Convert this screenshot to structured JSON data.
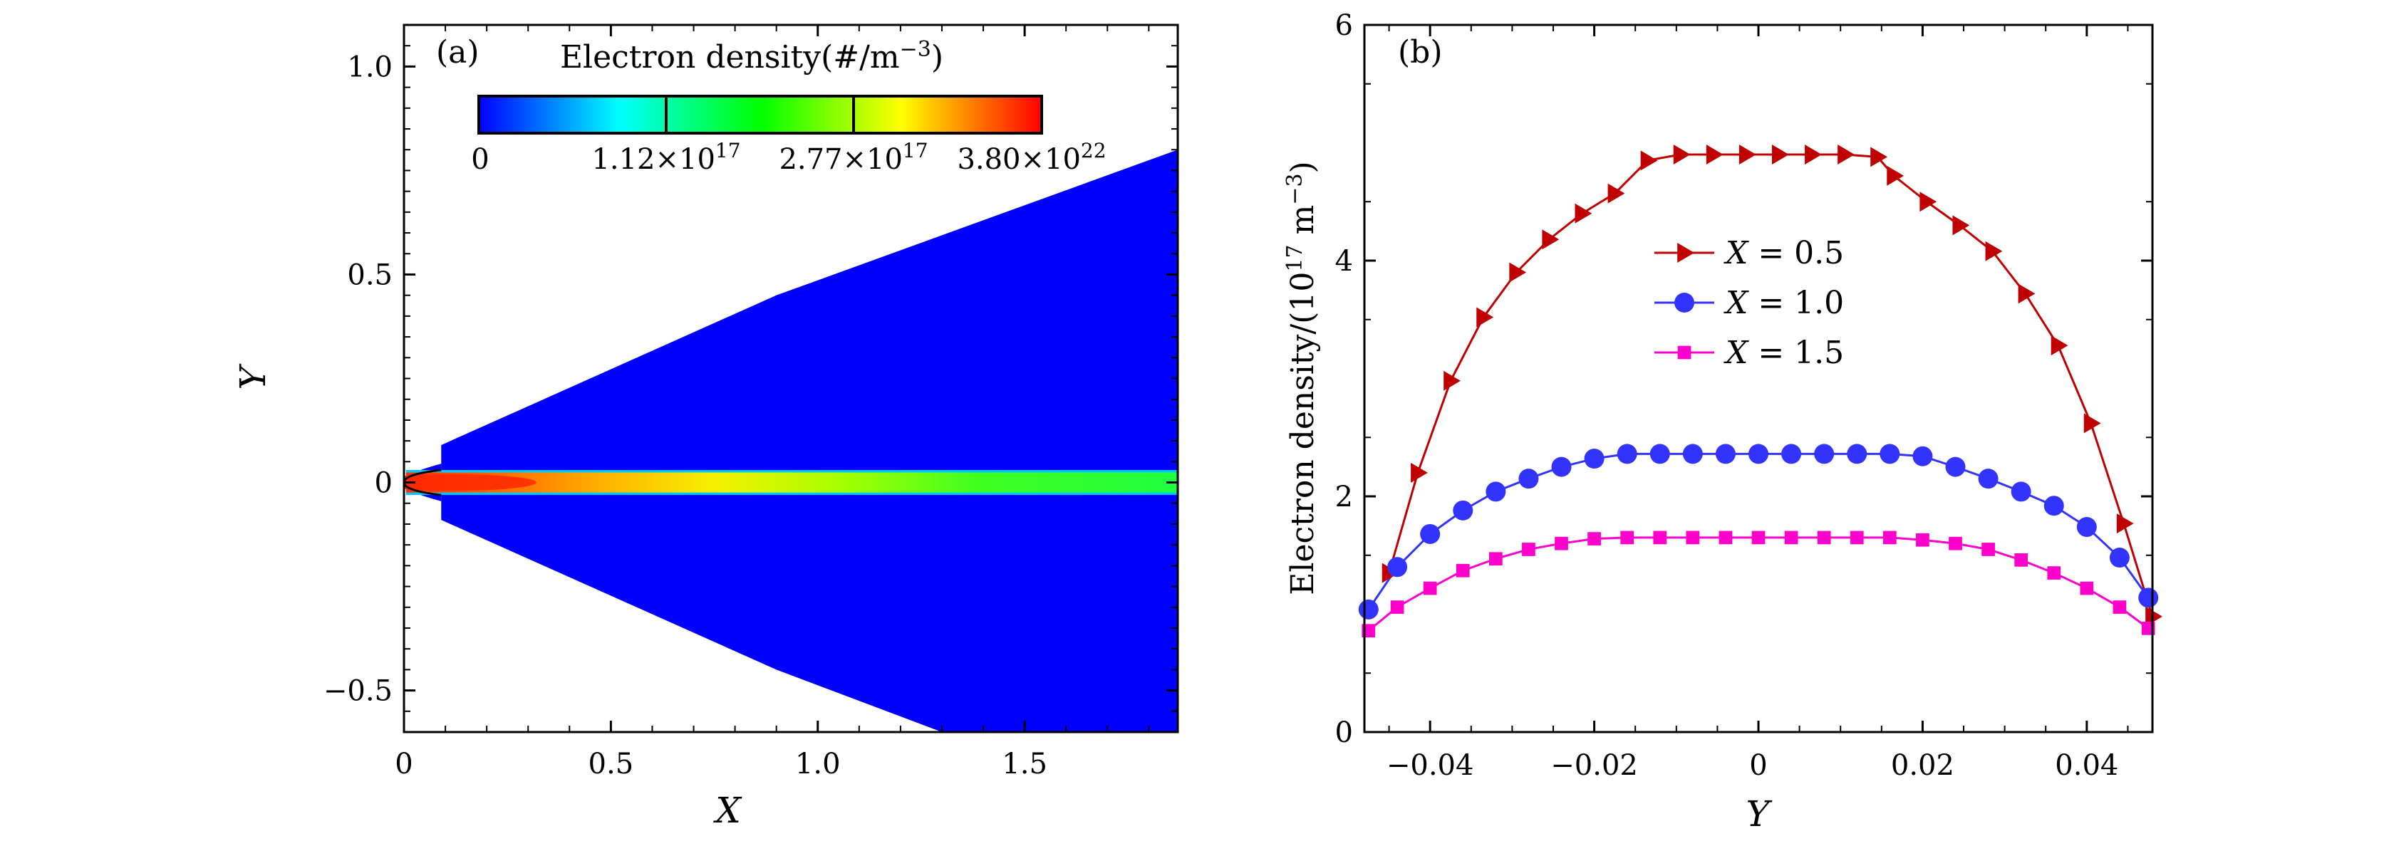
{
  "chart_data": [
    {
      "type": "heatmap",
      "panel_label": "(a)",
      "xlabel": "X",
      "ylabel": "Y",
      "xlim": [
        0,
        1.87
      ],
      "ylim": [
        -0.6,
        1.1
      ],
      "xticks": [
        0,
        0.5,
        1.0,
        1.5
      ],
      "xtick_labels": [
        "0",
        "0.5",
        "1.0",
        "1.5"
      ],
      "yticks": [
        -0.5,
        0,
        0.5,
        1.0
      ],
      "ytick_labels": [
        "−0.5",
        "0",
        "0.5",
        "1.0"
      ],
      "colorbar": {
        "title": "Electron density(#/m",
        "title_exp": "−3",
        "title_close": ")",
        "stops": [
          "#0000ff",
          "#00ffff",
          "#00ff00",
          "#ffff00",
          "#ff0000"
        ],
        "tick_labels": [
          {
            "text": "0"
          },
          {
            "mant": "1.12×10",
            "exp": "17"
          },
          {
            "mant": "2.77×10",
            "exp": "17"
          },
          {
            "mant": "3.80×10",
            "exp": "22"
          }
        ]
      },
      "domain_boundary": {
        "upper": [
          [
            0.09,
            0.09
          ],
          [
            0.9,
            0.45
          ],
          [
            1.87,
            0.8
          ]
        ],
        "lower": [
          [
            0.09,
            -0.09
          ],
          [
            0.9,
            -0.45
          ],
          [
            1.3,
            -0.6
          ]
        ]
      },
      "background_color": "#0000ff"
    },
    {
      "type": "line",
      "panel_label": "(b)",
      "xlabel": "Y",
      "ylabel": "Electron density/(10",
      "ylabel_exp": "17",
      "ylabel_tail": " m",
      "ylabel_exp2": "−3",
      "ylabel_close": ")",
      "xlim": [
        -0.048,
        0.048
      ],
      "ylim": [
        0,
        6
      ],
      "xticks": [
        -0.04,
        -0.02,
        0,
        0.02,
        0.04
      ],
      "xtick_labels": [
        "−0.04",
        "−0.02",
        "0",
        "0.02",
        "0.04"
      ],
      "yticks": [
        0,
        2,
        4,
        6
      ],
      "ytick_labels": [
        "0",
        "2",
        "4",
        "6"
      ],
      "legend_position": "center",
      "series": [
        {
          "name": "X = 0.5",
          "name_var": "X",
          "name_val": " = 0.5",
          "color": "#c00000",
          "marker": "triangle-right",
          "x": [
            -0.045,
            -0.0415,
            -0.0375,
            -0.0335,
            -0.0295,
            -0.0255,
            -0.0215,
            -0.0175,
            -0.0135,
            -0.0095,
            -0.0055,
            -0.0015,
            0.0025,
            0.0065,
            0.0105,
            0.0145,
            0.0165,
            0.0205,
            0.0245,
            0.0285,
            0.0325,
            0.0365,
            0.0405,
            0.0445,
            0.048
          ],
          "y": [
            1.35,
            2.2,
            2.98,
            3.52,
            3.9,
            4.18,
            4.4,
            4.57,
            4.85,
            4.9,
            4.9,
            4.9,
            4.9,
            4.9,
            4.9,
            4.88,
            4.72,
            4.5,
            4.3,
            4.08,
            3.72,
            3.28,
            2.62,
            1.77,
            0.98
          ]
        },
        {
          "name": "X = 1.0",
          "name_var": "X",
          "name_val": " = 1.0",
          "color": "#3333ff",
          "marker": "circle",
          "x": [
            -0.0475,
            -0.044,
            -0.04,
            -0.036,
            -0.032,
            -0.028,
            -0.024,
            -0.02,
            -0.016,
            -0.012,
            -0.008,
            -0.004,
            0,
            0.004,
            0.008,
            0.012,
            0.016,
            0.02,
            0.024,
            0.028,
            0.032,
            0.036,
            0.04,
            0.044,
            0.0475
          ],
          "y": [
            1.04,
            1.4,
            1.68,
            1.88,
            2.04,
            2.15,
            2.25,
            2.32,
            2.36,
            2.36,
            2.36,
            2.36,
            2.36,
            2.36,
            2.36,
            2.36,
            2.36,
            2.34,
            2.25,
            2.15,
            2.04,
            1.92,
            1.74,
            1.48,
            1.14
          ]
        },
        {
          "name": "X = 1.5",
          "name_var": "X",
          "name_val": " = 1.5",
          "color": "#ff00cc",
          "marker": "square",
          "x": [
            -0.0475,
            -0.044,
            -0.04,
            -0.036,
            -0.032,
            -0.028,
            -0.024,
            -0.02,
            -0.016,
            -0.012,
            -0.008,
            -0.004,
            0,
            0.004,
            0.008,
            0.012,
            0.016,
            0.02,
            0.024,
            0.028,
            0.032,
            0.036,
            0.04,
            0.044,
            0.0475
          ],
          "y": [
            0.86,
            1.06,
            1.22,
            1.37,
            1.47,
            1.55,
            1.6,
            1.64,
            1.65,
            1.65,
            1.65,
            1.65,
            1.65,
            1.65,
            1.65,
            1.65,
            1.65,
            1.63,
            1.6,
            1.55,
            1.46,
            1.35,
            1.22,
            1.06,
            0.88
          ]
        }
      ]
    }
  ]
}
